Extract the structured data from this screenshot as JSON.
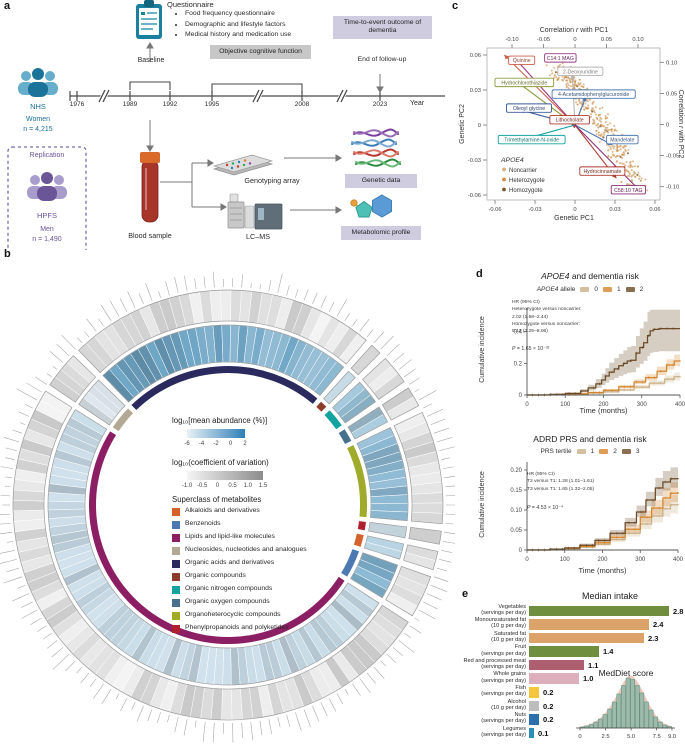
{
  "figure": {
    "panels": {
      "a": "a",
      "b": "b",
      "c": "c",
      "d": "d",
      "e": "e"
    }
  },
  "panel_a": {
    "questionnaire_title": "Questionnaire",
    "questionnaire_bullets": [
      "Food frequency questionnaire",
      "Demographic and lifestyle factors",
      "Medical history and medication use"
    ],
    "objective_box": "Objective cognitive function",
    "time_to_event_box": "Time-to-event outcome of dementia",
    "baseline_label": "Baseline",
    "end_follow_up": "End of follow-up",
    "years": [
      "1976",
      "1989",
      "1992",
      "1995",
      "2008",
      "2023"
    ],
    "year_axis": "Year",
    "nhs": {
      "name": "NHS",
      "group": "Women",
      "n": "n = 4,215"
    },
    "hpfs": {
      "name": "HPFS",
      "group": "Men",
      "n": "n = 1,490",
      "box": "Replication"
    },
    "blood_sample": "Blood sample",
    "genotyping": "Genotyping array",
    "lcms": "LC–MS",
    "genetic_box": "Genetic data",
    "metabolomic_box": "Metabolomic profile"
  },
  "panel_b": {
    "abundance_legend": {
      "title": "log₁₀[mean abundance (%)]",
      "ticks": [
        "-6",
        "-4",
        "-2",
        "0",
        "2"
      ]
    },
    "cv_legend": {
      "title": "log₁₀(coefficient of variation)",
      "ticks": [
        "-1.0",
        "-0.5",
        "0",
        "0.5",
        "1.0",
        "1.5"
      ]
    },
    "superclass_title": "Superclass of metabolites",
    "superclasses": [
      {
        "label": "Alkaloids and derivatives",
        "color": "#d4622a",
        "blue": "#b6d2e2",
        "a0": 102.5,
        "a1": 107.5
      },
      {
        "label": "Benzenoids",
        "color": "#4d79b3",
        "blue": "#7fb2cf",
        "a0": 109.5,
        "a1": 121
      },
      {
        "label": "Lipids and lipid-like molecules",
        "color": "#8c1f63",
        "blue": "#c9dde9",
        "a0": 123,
        "a1": 302
      },
      {
        "label": "Nucleosides, nucleotides and analogues",
        "color": "#b3a894",
        "blue": "#dde7ed",
        "a0": 304,
        "a1": 314
      },
      {
        "label": "Organic acids and derivatives",
        "color": "#2a2a5e",
        "blue": "#6fa6c6",
        "a0": 316,
        "a1": 400
      },
      {
        "label": "Organic compounds",
        "color": "#8e3b2a",
        "blue": "#c4d9e6",
        "a0": 42,
        "a1": 45
      },
      {
        "label": "Organic nitrogen compounds",
        "color": "#12a3a0",
        "blue": "#98c2d8",
        "a0": 47,
        "a1": 55
      },
      {
        "label": "Organic oxygen compounds",
        "color": "#47708e",
        "blue": "#a8cbdd",
        "a0": 57,
        "a1": 62.5
      },
      {
        "label": "Organoheterocyclic compounds",
        "color": "#a0ab2c",
        "blue": "#8dbad4",
        "a0": 64.5,
        "a1": 95
      },
      {
        "label": "Phenylpropanoids and polyketides",
        "color": "#b01f2e",
        "blue": "#cfe0ea",
        "a0": 97,
        "a1": 100.5
      }
    ]
  },
  "chart_data": [
    {
      "id": "genetic_pc_scatter",
      "type": "scatter",
      "xlabel": "Genetic PC1",
      "ylabel": "Genetic PC2",
      "top_label_parts": [
        "Correlation ",
        "r",
        " with PC1"
      ],
      "right_label_parts": [
        "Correlation ",
        "r",
        " with PC2"
      ],
      "xlim": [
        -0.06,
        0.06
      ],
      "ylim": [
        -0.06,
        0.06
      ],
      "xticks": [
        "-0.06",
        "-0.03",
        "0",
        "0.03",
        "0.06"
      ],
      "yticks": [
        "0.06",
        "0.03",
        "0",
        "-0.03",
        "-0.06"
      ],
      "top_ticks": [
        "-0.10",
        "-0.05",
        "0",
        "0.05",
        "0.10"
      ],
      "right_ticks": [
        "0.10",
        "0.05",
        "0",
        "-0.05",
        "-0.10"
      ],
      "legend": {
        "title": "APOE4",
        "items": [
          {
            "label": "Noncarrier",
            "color": "#d9ae7e"
          },
          {
            "label": "Heterozygote",
            "color": "#cf8a3a"
          },
          {
            "label": "Homozygote",
            "color": "#7a5a2e"
          }
        ]
      },
      "metabolites": [
        {
          "name": "Quinine",
          "color": "#cc5f4a",
          "bx": -0.04,
          "by": 0.0555,
          "tx": -0.053,
          "ty": 0.06
        },
        {
          "name": "C14:1 MAG",
          "color": "#993a85",
          "bx": -0.011,
          "by": 0.0575,
          "tx": -0.046,
          "ty": 0.0585
        },
        {
          "name": "2-Deoxyuridine",
          "color": "#b4b4b4",
          "bx": 0.004,
          "by": 0.046,
          "tx": -0.002,
          "ty": 0.043
        },
        {
          "name": "Hydrochlorothiazide",
          "color": "#8f9c3a",
          "bx": -0.038,
          "by": 0.0365,
          "tx": -0.047,
          "ty": 0.04
        },
        {
          "name": "4-Acetamidophenylglucuronide",
          "color": "#4d79b3",
          "bx": 0.014,
          "by": 0.0265,
          "tx": 0.008,
          "ty": 0.024
        },
        {
          "name": "Oleoyl glycine",
          "color": "#3a5a99",
          "bx": -0.0345,
          "by": 0.0145,
          "tx": -0.041,
          "ty": 0.013
        },
        {
          "name": "Lithocholate",
          "color": "#b03a30",
          "bx": -0.004,
          "by": 0.0045,
          "tx": 0.001,
          "ty": 0.001
        },
        {
          "name": "Trimethylamine-N-oxide",
          "color": "#12a3a0",
          "bx": -0.0325,
          "by": -0.0125,
          "tx": -0.044,
          "ty": -0.014
        },
        {
          "name": "Mandelate",
          "color": "#4d79b3",
          "bx": 0.0355,
          "by": -0.0125,
          "tx": 0.028,
          "ty": -0.017
        },
        {
          "name": "Hydrocinnamate",
          "color": "#b03a30",
          "bx": 0.0205,
          "by": -0.0395,
          "tx": 0.031,
          "ty": -0.0455
        },
        {
          "name": "C58:10 TAG",
          "color": "#8c2f78",
          "bx": 0.04,
          "by": -0.0555,
          "tx": 0.051,
          "ty": -0.059
        }
      ]
    },
    {
      "id": "apoe4_incidence",
      "type": "line",
      "title_italic": "APOE4",
      "title_rest": " and dementia risk",
      "legend_italic": "APOE4",
      "legend_rest": " allele",
      "xlabel": "Time (months)",
      "ylabel": "Cumulative incidence",
      "xticks": [
        0,
        100,
        200,
        300,
        400
      ],
      "xmax": 400,
      "yticks": [
        "0",
        "0.2",
        "0.4"
      ],
      "ymax": 0.55,
      "hr_lines": [
        "HR (95% CI)",
        "Heterozygote versus noncarrier:",
        "2.02 (1.68–2.44)",
        "Homozygote versus noncarrier:",
        "5.12 (3.25–8.06)"
      ],
      "p_italic": "P",
      "p_rest": " = 1.65 × 10⁻³²",
      "series": [
        {
          "name": "0",
          "color": "#c9b086",
          "ci": [
            0.8,
            1.22
          ],
          "points": [
            [
              0,
              0
            ],
            [
              40,
              0.001
            ],
            [
              80,
              0.003
            ],
            [
              120,
              0.006
            ],
            [
              160,
              0.012
            ],
            [
              200,
              0.02
            ],
            [
              240,
              0.032
            ],
            [
              280,
              0.05
            ],
            [
              320,
              0.075
            ],
            [
              360,
              0.1
            ],
            [
              385,
              0.115
            ],
            [
              400,
              0.12
            ]
          ]
        },
        {
          "name": "1",
          "color": "#d4852f",
          "ci": [
            0.85,
            1.18
          ],
          "points": [
            [
              0,
              0
            ],
            [
              40,
              0.001
            ],
            [
              80,
              0.004
            ],
            [
              120,
              0.008
            ],
            [
              160,
              0.016
            ],
            [
              200,
              0.03
            ],
            [
              240,
              0.052
            ],
            [
              280,
              0.082
            ],
            [
              310,
              0.11
            ],
            [
              340,
              0.15
            ],
            [
              365,
              0.19
            ],
            [
              385,
              0.215
            ],
            [
              400,
              0.22
            ]
          ]
        },
        {
          "name": "2",
          "color": "#6b4a26",
          "ci": [
            0.66,
            1.4
          ],
          "points": [
            [
              0,
              0
            ],
            [
              60,
              0.004
            ],
            [
              100,
              0.01
            ],
            [
              140,
              0.025
            ],
            [
              160,
              0.045
            ],
            [
              180,
              0.07
            ],
            [
              195,
              0.095
            ],
            [
              205,
              0.12
            ],
            [
              215,
              0.145
            ],
            [
              228,
              0.165
            ],
            [
              240,
              0.185
            ],
            [
              252,
              0.2
            ],
            [
              262,
              0.215
            ],
            [
              272,
              0.22
            ],
            [
              285,
              0.265
            ],
            [
              295,
              0.3
            ],
            [
              305,
              0.33
            ],
            [
              315,
              0.375
            ],
            [
              322,
              0.405
            ],
            [
              330,
              0.415
            ],
            [
              345,
              0.42
            ],
            [
              400,
              0.42
            ]
          ]
        }
      ]
    },
    {
      "id": "prs_incidence",
      "type": "line",
      "title_italic": "",
      "title_rest": "ADRD PRS and dementia risk",
      "legend_italic": "",
      "legend_rest": "PRS tertile",
      "xlabel": "Time (months)",
      "ylabel": "Cumulative incidence",
      "xticks": [
        0,
        100,
        200,
        300,
        400
      ],
      "xmax": 400,
      "yticks": [
        "0",
        "0.05",
        "0.10",
        "0.15",
        "0.20"
      ],
      "ymax": 0.22,
      "hr_lines": [
        "HR (95% CI)",
        "T2 versus T1: 1.28 (1.01–1.61)",
        "T3 versus T1: 1.65 (1.32–2.05)"
      ],
      "p_italic": "P",
      "p_rest": " = 4.53 × 10⁻⁴",
      "series": [
        {
          "name": "1",
          "color": "#c9b086",
          "ci": [
            0.82,
            1.2
          ],
          "points": [
            [
              0,
              0
            ],
            [
              60,
              0.001
            ],
            [
              100,
              0.003
            ],
            [
              140,
              0.007
            ],
            [
              180,
              0.014
            ],
            [
              220,
              0.026
            ],
            [
              260,
              0.042
            ],
            [
              300,
              0.065
            ],
            [
              330,
              0.085
            ],
            [
              360,
              0.103
            ],
            [
              380,
              0.113
            ],
            [
              400,
              0.115
            ]
          ]
        },
        {
          "name": "2",
          "color": "#d4852f",
          "ci": [
            0.85,
            1.18
          ],
          "points": [
            [
              0,
              0
            ],
            [
              60,
              0.001
            ],
            [
              100,
              0.004
            ],
            [
              140,
              0.009
            ],
            [
              180,
              0.018
            ],
            [
              220,
              0.032
            ],
            [
              260,
              0.052
            ],
            [
              300,
              0.082
            ],
            [
              330,
              0.105
            ],
            [
              360,
              0.13
            ],
            [
              380,
              0.142
            ],
            [
              400,
              0.145
            ]
          ]
        },
        {
          "name": "3",
          "color": "#6b4a26",
          "ci": [
            0.88,
            1.15
          ],
          "points": [
            [
              0,
              0
            ],
            [
              60,
              0.002
            ],
            [
              100,
              0.005
            ],
            [
              140,
              0.012
            ],
            [
              180,
              0.024
            ],
            [
              220,
              0.042
            ],
            [
              260,
              0.068
            ],
            [
              290,
              0.095
            ],
            [
              315,
              0.125
            ],
            [
              340,
              0.155
            ],
            [
              360,
              0.17
            ],
            [
              380,
              0.178
            ],
            [
              400,
              0.18
            ]
          ]
        }
      ]
    },
    {
      "id": "median_intake",
      "type": "bar",
      "title": "Median intake",
      "rows": [
        {
          "label": "Vegetables",
          "unit": "(servings per day)",
          "value": 2.8,
          "color": "#6f8f3f"
        },
        {
          "label": "Monounsaturated fat",
          "unit": "(10 g per day)",
          "value": 2.4,
          "color": "#dba36a"
        },
        {
          "label": "Saturated fat",
          "unit": "(10 g per day)",
          "value": 2.3,
          "color": "#dba36a"
        },
        {
          "label": "Fruit",
          "unit": "(servings per day)",
          "value": 1.4,
          "color": "#6f8f3f"
        },
        {
          "label": "Red and processed meat",
          "unit": "(servings per day)",
          "value": 1.1,
          "color": "#ad5f6f"
        },
        {
          "label": "Whole grains",
          "unit": "(servings per day)",
          "value": 1.0,
          "color": "#ddaebb"
        },
        {
          "label": "Fish",
          "unit": "(servings per day)",
          "value": 0.2,
          "color": "#f5c63c"
        },
        {
          "label": "Alcohol",
          "unit": "(10 g per day)",
          "value": 0.2,
          "color": "#bdbdbd"
        },
        {
          "label": "Nuts",
          "unit": "(servings per day)",
          "value": 0.2,
          "color": "#2c6fad"
        },
        {
          "label": "Legumes",
          "unit": "(servings per day)",
          "value": 0.1,
          "color": "#2c8fb5"
        }
      ]
    },
    {
      "id": "meddiet_hist",
      "type": "histogram",
      "title": "MedDiet score",
      "xticks": [
        "0",
        "2.5",
        "5.0",
        "7.5",
        "9.0"
      ],
      "xmax": 9,
      "bins": [
        0.02,
        0.04,
        0.07,
        0.12,
        0.18,
        0.27,
        0.38,
        0.52,
        0.68,
        0.85,
        1.0,
        0.97,
        0.85,
        0.7,
        0.52,
        0.36,
        0.22,
        0.12,
        0.06,
        0.03
      ],
      "bar_color": "#9dbbaa",
      "bar_stroke": "#5e8a7a",
      "density_color": "#eac5b6"
    }
  ]
}
